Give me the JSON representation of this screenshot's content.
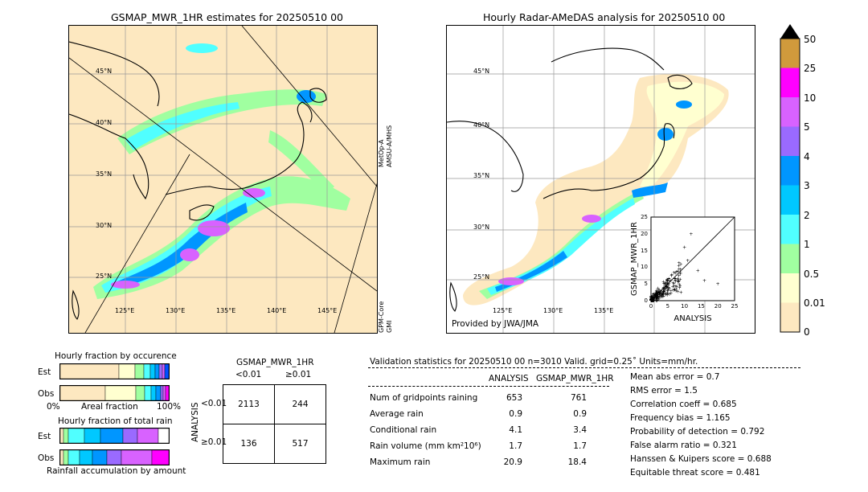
{
  "left_map": {
    "title": "GSMAP_MWR_1HR estimates for 20250510 00",
    "lat_labels": [
      "45°N",
      "40°N",
      "35°N",
      "30°N",
      "25°N"
    ],
    "lon_labels": [
      "125°E",
      "130°E",
      "135°E",
      "140°E",
      "145°E"
    ],
    "sat1": "MetOp-A",
    "sat2": "AMSU-A/MHS",
    "sat3": "GPM-Core",
    "sat4": "GMI"
  },
  "right_map": {
    "title": "Hourly Radar-AMeDAS analysis for 20250510 00",
    "lat_labels": [
      "45°N",
      "40°N",
      "35°N",
      "30°N",
      "25°N"
    ],
    "lon_labels": [
      "125°E",
      "130°E",
      "135°E"
    ],
    "credit": "Provided by JWA/JMA"
  },
  "scatter": {
    "xlabel": "ANALYSIS",
    "ylabel": "GSMAP_MWR_1HR",
    "ticks": [
      "0",
      "5",
      "10",
      "15",
      "20",
      "25"
    ]
  },
  "colorbar": {
    "labels": [
      "0",
      "0.01",
      "0.5",
      "1",
      "2",
      "3",
      "4",
      "5",
      "10",
      "25",
      "50"
    ],
    "colors": [
      "#fde8c0",
      "#ffffd0",
      "#a0ffa0",
      "#50ffff",
      "#00c8ff",
      "#0096ff",
      "#0050ff",
      "#9a6aff",
      "#d862ff",
      "#ff00ff",
      "#d09a3c"
    ]
  },
  "fraction": {
    "title1": "Hourly fraction by occurence",
    "title2": "Hourly fraction of total rain",
    "est": "Est",
    "obs": "Obs",
    "axis_left": "0%",
    "axis_mid": "Areal fraction",
    "axis_right": "100%",
    "footer": "Rainfall accumulation by amount"
  },
  "contingency": {
    "title": "GSMAP_MWR_1HR",
    "col1": "<0.01",
    "col2": "≥0.01",
    "row_axis": "ANALYSIS",
    "row1": "<0.01",
    "row2": "≥0.01",
    "cells": [
      "2113",
      "244",
      "136",
      "517"
    ]
  },
  "validation": {
    "header": "Validation statistics for 20250510 00  n=3010 Valid. grid=0.25˚ Units=mm/hr.",
    "col_analysis": "ANALYSIS",
    "col_gsmap": "GSMAP_MWR_1HR",
    "rows": [
      {
        "label": "Num of gridpoints raining",
        "a": "653",
        "g": "761"
      },
      {
        "label": "Average rain",
        "a": "0.9",
        "g": "0.9"
      },
      {
        "label": "Conditional rain",
        "a": "4.1",
        "g": "3.4"
      },
      {
        "label": "Rain volume (mm km²10⁶)",
        "a": "1.7",
        "g": "1.7"
      },
      {
        "label": "Maximum rain",
        "a": "20.9",
        "g": "18.4"
      }
    ],
    "scores": [
      "Mean abs error =    0.7",
      "RMS error =    1.5",
      "Correlation coeff =  0.685",
      "Frequency bias =  1.165",
      "Probability of detection =  0.792",
      "False alarm ratio =  0.321",
      "Hanssen & Kuipers score =  0.688",
      "Equitable threat score =  0.481"
    ]
  }
}
